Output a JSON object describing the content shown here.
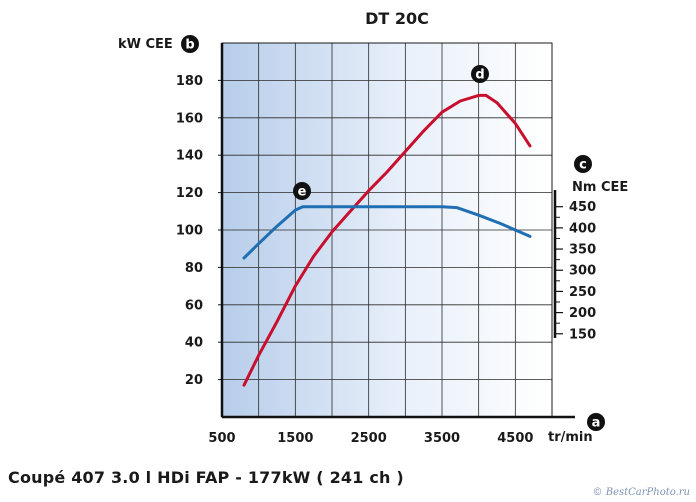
{
  "chart_data": {
    "type": "line",
    "title": "DT 20C",
    "x": {
      "label": "tr/min",
      "ticks": [
        500,
        1500,
        2500,
        3500,
        4500
      ],
      "range": [
        500,
        5000
      ]
    },
    "y_left": {
      "label": "kW CEE",
      "ticks": [
        20,
        40,
        60,
        80,
        100,
        120,
        140,
        160,
        180
      ],
      "range": [
        0,
        200
      ]
    },
    "y_right": {
      "label": "Nm CEE",
      "ticks": [
        150,
        200,
        250,
        300,
        350,
        400,
        450
      ],
      "range": [
        140,
        480
      ]
    },
    "markers": {
      "left_axis": "b",
      "right_axis": "c",
      "x_axis": "a",
      "power": "d",
      "torque": "e"
    },
    "grid": true,
    "series": [
      {
        "key": "power",
        "axis": "left",
        "color": "#c8102e",
        "points": [
          [
            800,
            17
          ],
          [
            1000,
            33
          ],
          [
            1250,
            51
          ],
          [
            1500,
            70
          ],
          [
            1750,
            86
          ],
          [
            2000,
            99
          ],
          [
            2250,
            110
          ],
          [
            2500,
            121
          ],
          [
            2750,
            131
          ],
          [
            3000,
            142
          ],
          [
            3250,
            153
          ],
          [
            3500,
            163
          ],
          [
            3750,
            169
          ],
          [
            4000,
            172
          ],
          [
            4100,
            172
          ],
          [
            4250,
            168
          ],
          [
            4500,
            157
          ],
          [
            4700,
            145
          ]
        ]
      },
      {
        "key": "torque",
        "axis": "right",
        "color": "#1f6fb2",
        "points": [
          [
            800,
            329
          ],
          [
            1000,
            363
          ],
          [
            1250,
            404
          ],
          [
            1500,
            442
          ],
          [
            1600,
            450
          ],
          [
            2000,
            450
          ],
          [
            2500,
            450
          ],
          [
            3000,
            450
          ],
          [
            3500,
            450
          ],
          [
            3700,
            448
          ],
          [
            4000,
            430
          ],
          [
            4300,
            410
          ],
          [
            4500,
            395
          ],
          [
            4700,
            380
          ]
        ]
      }
    ]
  },
  "caption": "Coupé 407  3.0 l HDi FAP - 177kW ( 241 ch )",
  "watermark": "© BestCarPhoto.ru"
}
